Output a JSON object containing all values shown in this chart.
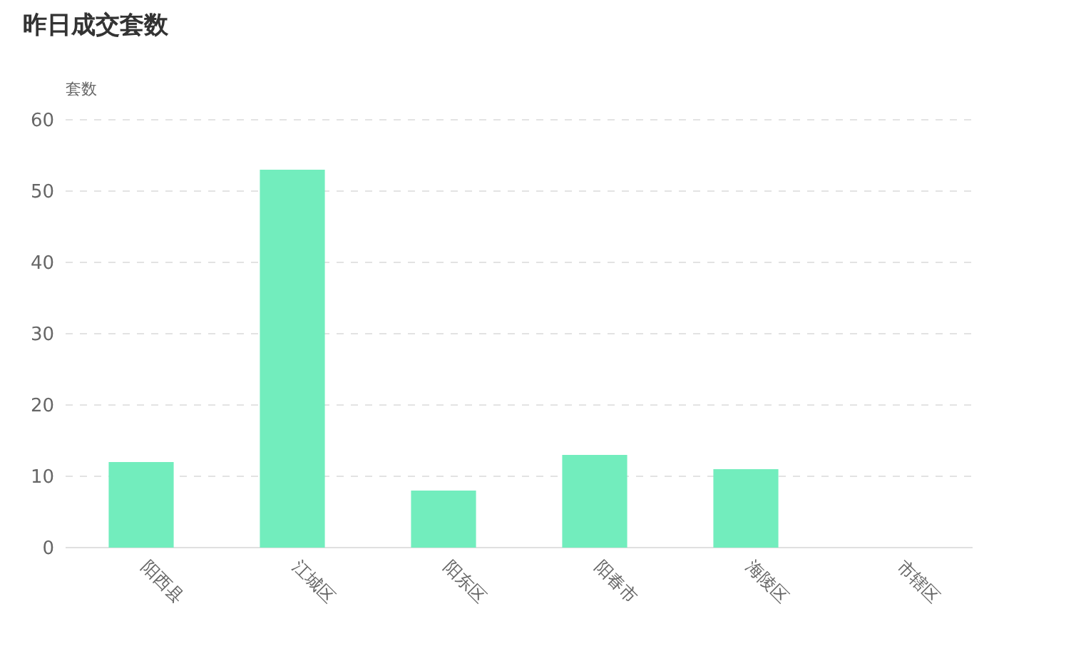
{
  "chart_data": {
    "type": "bar",
    "title": "昨日成交套数",
    "ylabel": "套数",
    "categories": [
      "阳西县",
      "江城区",
      "阳东区",
      "阳春市",
      "海陵区",
      "市辖区"
    ],
    "values": [
      12,
      53,
      8,
      13,
      11,
      0
    ],
    "color": "#72edbd",
    "ylim": [
      0,
      60
    ],
    "yticks": [
      0,
      10,
      20,
      30,
      40,
      50,
      60
    ],
    "grid": "y"
  }
}
